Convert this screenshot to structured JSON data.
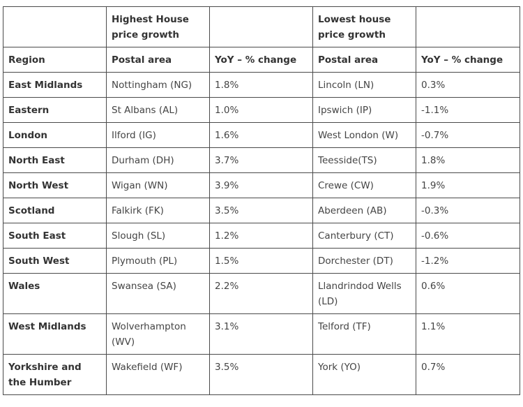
{
  "table": {
    "group_headers": [
      "",
      "Highest House price growth",
      "",
      "Lowest house price growth",
      ""
    ],
    "column_headers": [
      "Region",
      "Postal area",
      "YoY – % change",
      "Postal area",
      "YoY – % change"
    ],
    "rows": [
      [
        "East Midlands",
        "Nottingham (NG)",
        "1.8%",
        "Lincoln (LN)",
        "0.3%"
      ],
      [
        "Eastern",
        "St Albans (AL)",
        "1.0%",
        "Ipswich (IP)",
        "-1.1%"
      ],
      [
        "London",
        "Ilford (IG)",
        "1.6%",
        "West London (W)",
        "-0.7%"
      ],
      [
        "North East",
        "Durham (DH)",
        "3.7%",
        "Teesside(TS)",
        "1.8%"
      ],
      [
        "North West",
        "Wigan (WN)",
        "3.9%",
        "Crewe (CW)",
        "1.9%"
      ],
      [
        "Scotland",
        "Falkirk (FK)",
        "3.5%",
        "Aberdeen (AB)",
        "-0.3%"
      ],
      [
        "South East",
        "Slough (SL)",
        "1.2%",
        "Canterbury (CT)",
        "-0.6%"
      ],
      [
        "South West",
        "Plymouth (PL)",
        "1.5%",
        "Dorchester (DT)",
        "-1.2%"
      ],
      [
        "Wales",
        "Swansea (SA)",
        "2.2%",
        "Llandrindod Wells (LD)",
        "0.6%"
      ],
      [
        "West Midlands",
        "Wolverhampton (WV)",
        "3.1%",
        "Telford (TF)",
        "1.1%"
      ],
      [
        "Yorkshire and the Humber",
        "Wakefield (WF)",
        "3.5%",
        "York (YO)",
        "0.7%"
      ]
    ]
  }
}
